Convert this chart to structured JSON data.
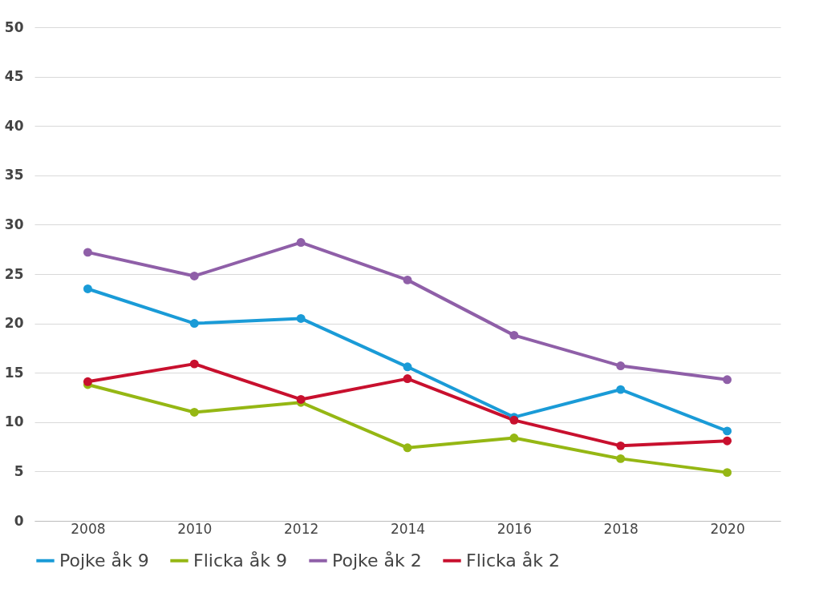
{
  "chart_data": {
    "type": "line",
    "categories": [
      "2008",
      "2010",
      "2012",
      "2014",
      "2016",
      "2018",
      "2020"
    ],
    "series": [
      {
        "name": "Pojke åk 9",
        "color": "#1a9bd7",
        "values": [
          23.5,
          20.0,
          20.5,
          15.6,
          10.5,
          13.3,
          9.1
        ]
      },
      {
        "name": "Flicka åk 9",
        "color": "#95b714",
        "values": [
          13.8,
          11.0,
          12.0,
          7.4,
          8.4,
          6.3,
          4.9
        ]
      },
      {
        "name": "Pojke åk 2",
        "color": "#8f5fa8",
        "values": [
          27.2,
          24.8,
          28.2,
          24.4,
          18.8,
          15.7,
          14.3
        ]
      },
      {
        "name": "Flicka åk 2",
        "color": "#c8102e",
        "values": [
          14.1,
          15.9,
          12.3,
          14.4,
          10.2,
          7.6,
          8.1
        ]
      }
    ],
    "ylim": [
      0,
      50
    ],
    "yticks": [
      0,
      5,
      10,
      15,
      20,
      25,
      30,
      35,
      40,
      45,
      50
    ],
    "grid": "y",
    "legend": "bottom",
    "marker": "circle",
    "line_style": "solid"
  }
}
